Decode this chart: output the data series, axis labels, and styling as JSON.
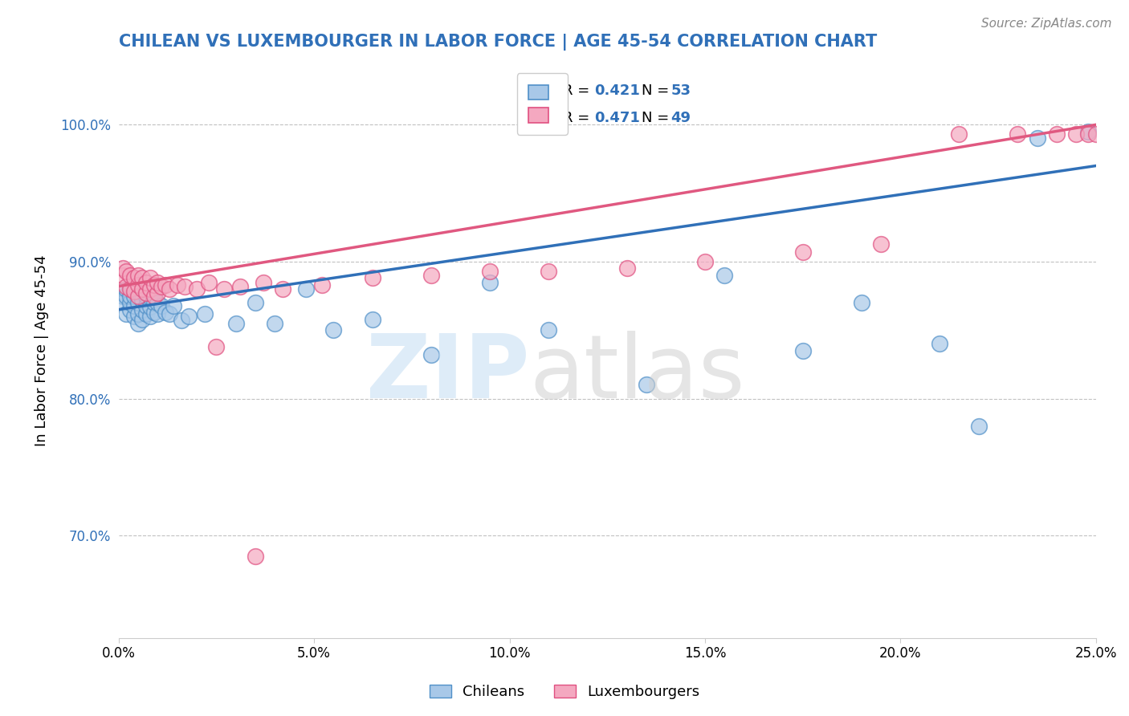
{
  "title": "CHILEAN VS LUXEMBOURGER IN LABOR FORCE | AGE 45-54 CORRELATION CHART",
  "source": "Source: ZipAtlas.com",
  "ylabel": "In Labor Force | Age 45-54",
  "xlim": [
    0.0,
    0.25
  ],
  "ylim": [
    0.625,
    1.045
  ],
  "xticks": [
    0.0,
    0.05,
    0.1,
    0.15,
    0.2,
    0.25
  ],
  "xtick_labels": [
    "0.0%",
    "5.0%",
    "10.0%",
    "15.0%",
    "20.0%",
    "25.0%"
  ],
  "yticks": [
    0.7,
    0.8,
    0.9,
    1.0
  ],
  "ytick_labels": [
    "70.0%",
    "80.0%",
    "90.0%",
    "100.0%"
  ],
  "blue_color": "#A8C8E8",
  "pink_color": "#F4A8C0",
  "blue_edge_color": "#5090C8",
  "pink_edge_color": "#E05080",
  "blue_line_color": "#3070B8",
  "pink_line_color": "#E05880",
  "title_color": "#3070B8",
  "legend_R1": "R = 0.421",
  "legend_N1": "N = 53",
  "legend_R2": "R = 0.471",
  "legend_N2": "N = 49",
  "blue_scatter_x": [
    0.001,
    0.001,
    0.002,
    0.002,
    0.002,
    0.003,
    0.003,
    0.003,
    0.003,
    0.004,
    0.004,
    0.004,
    0.005,
    0.005,
    0.005,
    0.005,
    0.006,
    0.006,
    0.006,
    0.007,
    0.007,
    0.007,
    0.008,
    0.008,
    0.008,
    0.009,
    0.009,
    0.01,
    0.01,
    0.011,
    0.012,
    0.013,
    0.014,
    0.016,
    0.018,
    0.022,
    0.03,
    0.035,
    0.04,
    0.048,
    0.055,
    0.065,
    0.08,
    0.095,
    0.11,
    0.135,
    0.155,
    0.175,
    0.19,
    0.21,
    0.22,
    0.235,
    0.248
  ],
  "blue_scatter_y": [
    0.875,
    0.87,
    0.862,
    0.875,
    0.88,
    0.865,
    0.87,
    0.875,
    0.882,
    0.86,
    0.868,
    0.875,
    0.855,
    0.862,
    0.87,
    0.878,
    0.858,
    0.865,
    0.872,
    0.862,
    0.868,
    0.875,
    0.86,
    0.867,
    0.874,
    0.863,
    0.87,
    0.862,
    0.87,
    0.868,
    0.863,
    0.862,
    0.868,
    0.857,
    0.86,
    0.862,
    0.855,
    0.87,
    0.855,
    0.88,
    0.85,
    0.858,
    0.832,
    0.885,
    0.85,
    0.81,
    0.89,
    0.835,
    0.87,
    0.84,
    0.78,
    0.99,
    0.995
  ],
  "pink_scatter_x": [
    0.001,
    0.001,
    0.002,
    0.002,
    0.003,
    0.003,
    0.004,
    0.004,
    0.005,
    0.005,
    0.005,
    0.006,
    0.006,
    0.007,
    0.007,
    0.008,
    0.008,
    0.009,
    0.009,
    0.01,
    0.01,
    0.011,
    0.012,
    0.013,
    0.015,
    0.017,
    0.02,
    0.023,
    0.027,
    0.031,
    0.037,
    0.042,
    0.052,
    0.065,
    0.08,
    0.095,
    0.11,
    0.13,
    0.15,
    0.175,
    0.195,
    0.215,
    0.23,
    0.24,
    0.245,
    0.248,
    0.25,
    0.025,
    0.035
  ],
  "pink_scatter_y": [
    0.89,
    0.895,
    0.882,
    0.893,
    0.88,
    0.89,
    0.878,
    0.888,
    0.875,
    0.883,
    0.89,
    0.88,
    0.888,
    0.877,
    0.885,
    0.88,
    0.888,
    0.875,
    0.883,
    0.877,
    0.885,
    0.882,
    0.883,
    0.88,
    0.883,
    0.882,
    0.88,
    0.885,
    0.88,
    0.882,
    0.885,
    0.88,
    0.883,
    0.888,
    0.89,
    0.893,
    0.893,
    0.895,
    0.9,
    0.907,
    0.913,
    0.993,
    0.993,
    0.993,
    0.993,
    0.993,
    0.993,
    0.838,
    0.685
  ]
}
